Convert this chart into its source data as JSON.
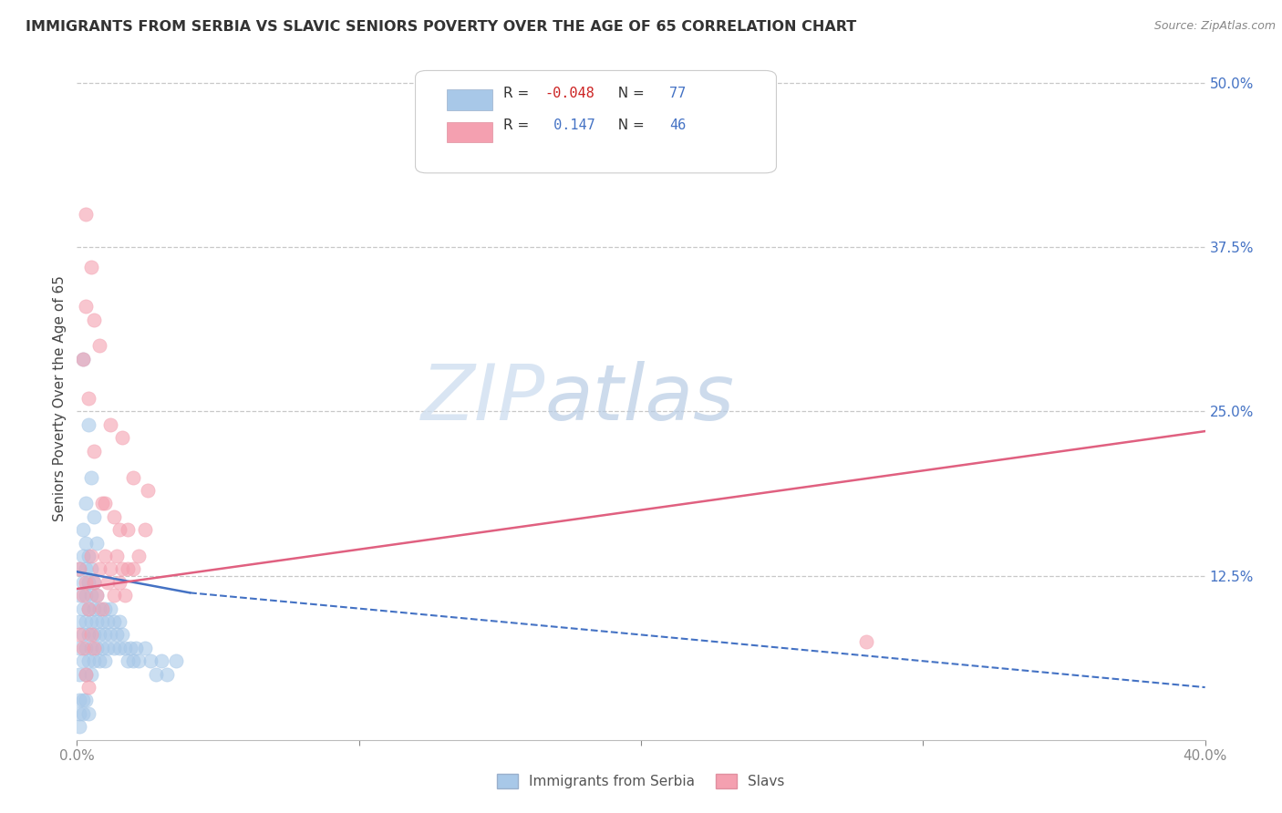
{
  "title": "IMMIGRANTS FROM SERBIA VS SLAVIC SENIORS POVERTY OVER THE AGE OF 65 CORRELATION CHART",
  "source": "Source: ZipAtlas.com",
  "ylabel": "Seniors Poverty Over the Age of 65",
  "xlim": [
    0.0,
    0.4
  ],
  "ylim": [
    0.0,
    0.52
  ],
  "ytick_right_labels": [
    "50.0%",
    "37.5%",
    "25.0%",
    "12.5%",
    ""
  ],
  "ytick_right_values": [
    0.5,
    0.375,
    0.25,
    0.125,
    0.0
  ],
  "grid_color": "#c8c8c8",
  "background_color": "#ffffff",
  "watermark_zip": "ZIP",
  "watermark_atlas": "atlas",
  "blue_color": "#a8c8e8",
  "pink_color": "#f4a0b0",
  "blue_line_color": "#4472c4",
  "pink_line_color": "#e06080",
  "label1": "Immigrants from Serbia",
  "label2": "Slavs",
  "blue_scatter_x": [
    0.001,
    0.001,
    0.001,
    0.001,
    0.001,
    0.002,
    0.002,
    0.002,
    0.002,
    0.002,
    0.002,
    0.003,
    0.003,
    0.003,
    0.003,
    0.003,
    0.003,
    0.004,
    0.004,
    0.004,
    0.004,
    0.004,
    0.005,
    0.005,
    0.005,
    0.005,
    0.005,
    0.006,
    0.006,
    0.006,
    0.006,
    0.007,
    0.007,
    0.007,
    0.008,
    0.008,
    0.008,
    0.009,
    0.009,
    0.01,
    0.01,
    0.01,
    0.011,
    0.011,
    0.012,
    0.012,
    0.013,
    0.013,
    0.014,
    0.015,
    0.015,
    0.016,
    0.017,
    0.018,
    0.019,
    0.02,
    0.021,
    0.022,
    0.024,
    0.026,
    0.028,
    0.03,
    0.032,
    0.035,
    0.002,
    0.003,
    0.004,
    0.005,
    0.006,
    0.007,
    0.001,
    0.001,
    0.001,
    0.002,
    0.002,
    0.003,
    0.004
  ],
  "blue_scatter_y": [
    0.05,
    0.07,
    0.09,
    0.11,
    0.13,
    0.06,
    0.08,
    0.1,
    0.12,
    0.14,
    0.16,
    0.05,
    0.07,
    0.09,
    0.11,
    0.13,
    0.15,
    0.06,
    0.08,
    0.1,
    0.12,
    0.14,
    0.05,
    0.07,
    0.09,
    0.11,
    0.13,
    0.06,
    0.08,
    0.1,
    0.12,
    0.07,
    0.09,
    0.11,
    0.06,
    0.08,
    0.1,
    0.07,
    0.09,
    0.06,
    0.08,
    0.1,
    0.07,
    0.09,
    0.08,
    0.1,
    0.07,
    0.09,
    0.08,
    0.07,
    0.09,
    0.08,
    0.07,
    0.06,
    0.07,
    0.06,
    0.07,
    0.06,
    0.07,
    0.06,
    0.05,
    0.06,
    0.05,
    0.06,
    0.29,
    0.18,
    0.24,
    0.2,
    0.17,
    0.15,
    0.03,
    0.01,
    0.02,
    0.02,
    0.03,
    0.03,
    0.02
  ],
  "pink_scatter_x": [
    0.001,
    0.002,
    0.003,
    0.004,
    0.005,
    0.006,
    0.007,
    0.008,
    0.009,
    0.01,
    0.011,
    0.012,
    0.013,
    0.014,
    0.015,
    0.016,
    0.017,
    0.018,
    0.02,
    0.022,
    0.024,
    0.003,
    0.005,
    0.008,
    0.012,
    0.016,
    0.02,
    0.025,
    0.002,
    0.004,
    0.006,
    0.009,
    0.013,
    0.018,
    0.003,
    0.006,
    0.01,
    0.015,
    0.001,
    0.002,
    0.003,
    0.004,
    0.005,
    0.006,
    0.28
  ],
  "pink_scatter_y": [
    0.13,
    0.11,
    0.12,
    0.1,
    0.14,
    0.12,
    0.11,
    0.13,
    0.1,
    0.14,
    0.12,
    0.13,
    0.11,
    0.14,
    0.12,
    0.13,
    0.11,
    0.13,
    0.13,
    0.14,
    0.16,
    0.4,
    0.36,
    0.3,
    0.24,
    0.23,
    0.2,
    0.19,
    0.29,
    0.26,
    0.22,
    0.18,
    0.17,
    0.16,
    0.33,
    0.32,
    0.18,
    0.16,
    0.08,
    0.07,
    0.05,
    0.04,
    0.08,
    0.07,
    0.075
  ],
  "blue_line_x": [
    0.0,
    0.4
  ],
  "blue_line_y": [
    0.128,
    0.04
  ],
  "pink_line_x": [
    0.0,
    0.4
  ],
  "pink_line_y": [
    0.115,
    0.235
  ]
}
